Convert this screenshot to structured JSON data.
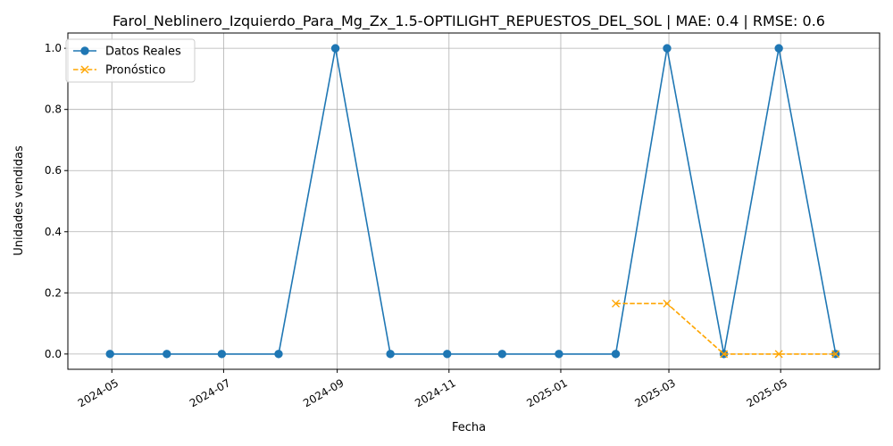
{
  "chart_data": {
    "type": "line",
    "title": "Farol_Neblinero_Izquierdo_Para_Mg_Zx_1.5-OPTILIGHT_REPUESTOS_DEL_SOL | MAE: 0.4 | RMSE: 0.6",
    "xlabel": "Fecha",
    "ylabel": "Unidades vendidas",
    "ylim": [
      -0.05,
      1.05
    ],
    "xlim": [
      "2024-04-07",
      "2025-06-24"
    ],
    "yticks": [
      0.0,
      0.2,
      0.4,
      0.6,
      0.8,
      1.0
    ],
    "ytick_labels": [
      "0.0",
      "0.2",
      "0.4",
      "0.6",
      "0.8",
      "1.0"
    ],
    "xticks": [
      "2024-05-01",
      "2024-07-01",
      "2024-09-01",
      "2024-11-01",
      "2025-01-01",
      "2025-03-01",
      "2025-05-01"
    ],
    "xtick_labels": [
      "2024-05",
      "2024-07",
      "2024-09",
      "2024-11",
      "2025-01",
      "2025-03",
      "2025-05"
    ],
    "grid": true,
    "legend_position": "upper-left",
    "series": [
      {
        "name": "Datos Reales",
        "color": "#1f77b4",
        "line_style": "solid",
        "marker": "circle",
        "x": [
          "2024-04-30",
          "2024-05-31",
          "2024-06-30",
          "2024-07-31",
          "2024-08-31",
          "2024-09-30",
          "2024-10-31",
          "2024-11-30",
          "2024-12-31",
          "2025-01-31",
          "2025-02-28",
          "2025-03-31",
          "2025-04-30",
          "2025-05-31"
        ],
        "y": [
          0,
          0,
          0,
          0,
          1,
          0,
          0,
          0,
          0,
          0,
          1,
          0,
          1,
          0
        ]
      },
      {
        "name": "Pronóstico",
        "color": "#ffa500",
        "line_style": "dashed",
        "marker": "x",
        "x": [
          "2025-01-31",
          "2025-02-28",
          "2025-03-31",
          "2025-04-30",
          "2025-05-31"
        ],
        "y": [
          0.165,
          0.165,
          0.0,
          0.0,
          0.0
        ]
      }
    ]
  }
}
